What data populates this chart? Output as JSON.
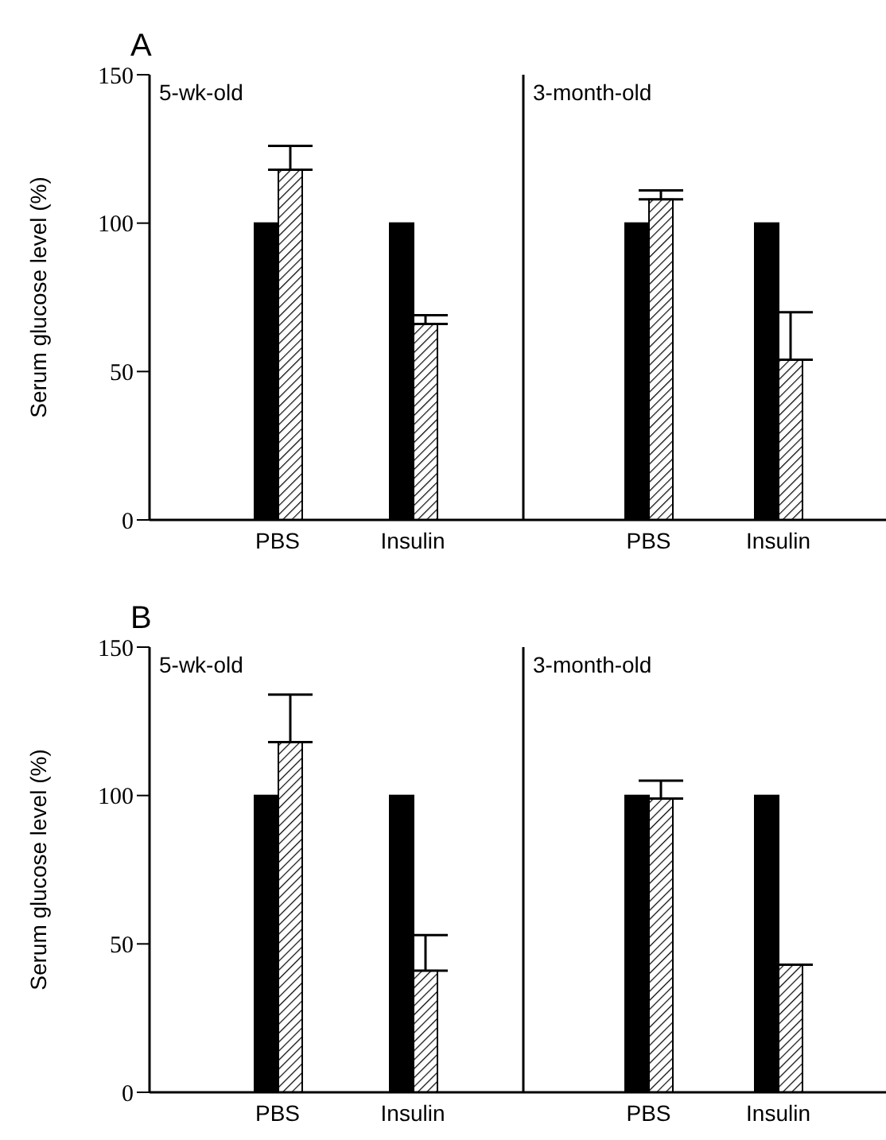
{
  "chart_data": [
    {
      "type": "bar",
      "title": "A",
      "subtitle": "5-wk-old",
      "ylabel": "Serum glucose level (%)",
      "categories": [
        "PBS",
        "Insulin"
      ],
      "series": [
        {
          "color": "#000000",
          "values": [
            100,
            100
          ]
        },
        {
          "color": "#ffffff",
          "values": [
            118,
            66
          ],
          "errors": [
            [
              118,
              126
            ],
            [
              66,
              69
            ]
          ]
        }
      ],
      "ylim": [
        0,
        150
      ],
      "yticks": [
        0,
        50,
        100,
        150
      ],
      "grid": false,
      "legend": false
    },
    {
      "type": "bar",
      "subtitle": "3-month-old",
      "categories": [
        "PBS",
        "Insulin"
      ],
      "series": [
        {
          "color": "#000000",
          "values": [
            100,
            100
          ]
        },
        {
          "color": "#ffffff",
          "values": [
            108,
            54
          ],
          "errors": [
            [
              108,
              111
            ],
            [
              54,
              70
            ]
          ]
        }
      ],
      "ylim": [
        0,
        150
      ],
      "yticks": [
        0,
        50,
        100,
        150
      ],
      "tick_labels": "x",
      "grid": false,
      "legend": false
    },
    {
      "type": "bar",
      "title": "B",
      "subtitle": "5-wk-old",
      "ylabel": "Serum glucose level (%)",
      "categories": [
        "PBS",
        "Insulin"
      ],
      "series": [
        {
          "color": "#000000",
          "values": [
            100,
            100
          ]
        },
        {
          "color": "#ffffff",
          "values": [
            118,
            41
          ],
          "errors": [
            [
              118,
              134
            ],
            [
              41,
              53
            ]
          ]
        }
      ],
      "ylim": [
        0,
        150
      ],
      "yticks": [
        0,
        50,
        100,
        150
      ],
      "grid": false,
      "legend": false
    },
    {
      "type": "bar",
      "subtitle": "3-month-old",
      "categories": [
        "PBS",
        "Insulin"
      ],
      "series": [
        {
          "color": "#000000",
          "values": [
            100,
            100
          ]
        },
        {
          "color": "#ffffff",
          "values": [
            99,
            43
          ],
          "errors": [
            [
              99,
              105
            ],
            null
          ]
        }
      ],
      "ylim": [
        0,
        150
      ],
      "yticks": [
        0,
        50,
        100,
        150
      ],
      "tick_labels": "x",
      "grid": false,
      "legend": false
    }
  ]
}
